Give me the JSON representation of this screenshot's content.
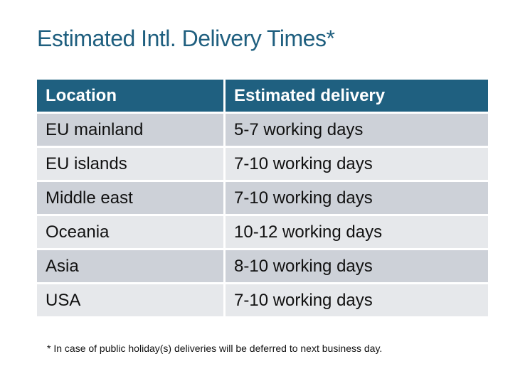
{
  "title": "Estimated Intl. Delivery Times*",
  "table": {
    "headers": [
      "Location",
      "Estimated delivery"
    ],
    "rows": [
      [
        "EU mainland",
        "5-7 working days"
      ],
      [
        "EU islands",
        "7-10 working days"
      ],
      [
        "Middle east",
        "7-10 working days"
      ],
      [
        "Oceania",
        "10-12 working days"
      ],
      [
        "Asia",
        "8-10 working days"
      ],
      [
        "USA",
        "7-10 working days"
      ]
    ]
  },
  "footnote": "* In case of public holiday(s) deliveries will be deferred to next business day.",
  "colors": {
    "accent": "#1f6080",
    "row_dark": "#cdd1d8",
    "row_light": "#e6e8eb"
  }
}
